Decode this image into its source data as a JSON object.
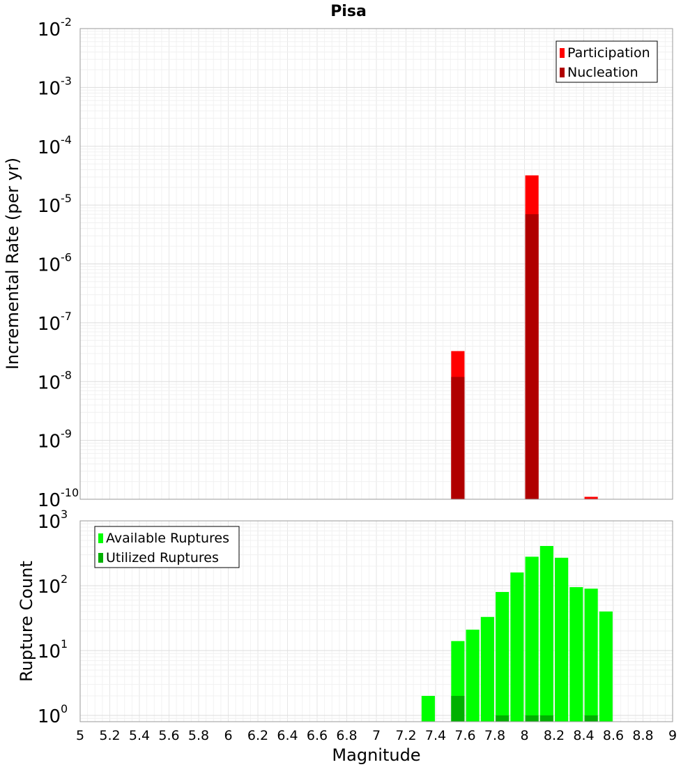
{
  "chart_data": [
    {
      "type": "bar",
      "title": "Pisa",
      "xlabel": "",
      "ylabel": "Incremental Rate (per yr)",
      "xlim": [
        5,
        9
      ],
      "ylim": [
        1e-10,
        0.01
      ],
      "yscale": "log",
      "yticks": [
        {
          "base": "10",
          "exp": "-10"
        },
        {
          "base": "10",
          "exp": "-9"
        },
        {
          "base": "10",
          "exp": "-8"
        },
        {
          "base": "10",
          "exp": "-7"
        },
        {
          "base": "10",
          "exp": "-6"
        },
        {
          "base": "10",
          "exp": "-5"
        },
        {
          "base": "10",
          "exp": "-4"
        },
        {
          "base": "10",
          "exp": "-3"
        },
        {
          "base": "10",
          "exp": "-2"
        }
      ],
      "grid": true,
      "legend_position": "top-right",
      "bar_width": 0.09,
      "series": [
        {
          "name": "Participation",
          "color": "#ff0000",
          "x": [
            7.55,
            8.05,
            8.45
          ],
          "values": [
            3.3e-08,
            3.2e-05,
            1.1e-10
          ]
        },
        {
          "name": "Nucleation",
          "color": "#b00000",
          "x": [
            7.55,
            8.05
          ],
          "values": [
            1.2e-08,
            7e-06
          ]
        }
      ]
    },
    {
      "type": "bar",
      "title": "",
      "xlabel": "Magnitude",
      "ylabel": "Rupture Count",
      "xlim": [
        5,
        9
      ],
      "ylim": [
        0.8,
        1000
      ],
      "yscale": "log",
      "yticks": [
        {
          "base": "10",
          "exp": "0"
        },
        {
          "base": "10",
          "exp": "1"
        },
        {
          "base": "10",
          "exp": "2"
        },
        {
          "base": "10",
          "exp": "3"
        }
      ],
      "xticks": [
        "5",
        "5.2",
        "5.4",
        "5.6",
        "5.8",
        "6",
        "6.2",
        "6.4",
        "6.6",
        "6.8",
        "7",
        "7.2",
        "7.4",
        "7.6",
        "7.8",
        "8",
        "8.2",
        "8.4",
        "8.6",
        "8.8",
        "9"
      ],
      "grid": true,
      "legend_position": "top-left",
      "bar_width": 0.09,
      "series": [
        {
          "name": "Available Ruptures",
          "color": "#00ff00",
          "x": [
            7.35,
            7.55,
            7.65,
            7.75,
            7.85,
            7.95,
            8.05,
            8.15,
            8.25,
            8.35,
            8.45,
            8.55
          ],
          "values": [
            2,
            14,
            21,
            33,
            80,
            160,
            280,
            410,
            270,
            95,
            90,
            40
          ]
        },
        {
          "name": "Utilized Ruptures",
          "color": "#00b000",
          "x": [
            7.55,
            7.85,
            8.05,
            8.15,
            8.45
          ],
          "values": [
            2,
            1,
            1,
            1,
            1
          ]
        }
      ]
    }
  ]
}
